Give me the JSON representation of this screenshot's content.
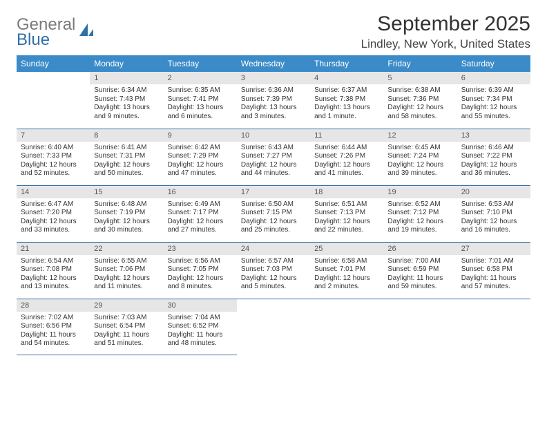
{
  "logo": {
    "word1": "General",
    "word2": "Blue"
  },
  "title": "September 2025",
  "location": "Lindley, New York, United States",
  "colors": {
    "header_bg": "#3b8bc9",
    "header_text": "#ffffff",
    "daynum_bg": "#e6e6e6",
    "cell_border": "#2f6fa8",
    "logo_gray": "#7a7a7a",
    "logo_blue": "#2f6fa8",
    "body_text": "#333333"
  },
  "typography": {
    "title_fontsize": 30,
    "location_fontsize": 17,
    "header_fontsize": 12,
    "daynum_fontsize": 11,
    "body_fontsize": 10
  },
  "weekdays": [
    "Sunday",
    "Monday",
    "Tuesday",
    "Wednesday",
    "Thursday",
    "Friday",
    "Saturday"
  ],
  "start_weekday": 1,
  "days": [
    {
      "n": 1,
      "sunrise": "6:34 AM",
      "sunset": "7:43 PM",
      "daylight": "13 hours and 9 minutes."
    },
    {
      "n": 2,
      "sunrise": "6:35 AM",
      "sunset": "7:41 PM",
      "daylight": "13 hours and 6 minutes."
    },
    {
      "n": 3,
      "sunrise": "6:36 AM",
      "sunset": "7:39 PM",
      "daylight": "13 hours and 3 minutes."
    },
    {
      "n": 4,
      "sunrise": "6:37 AM",
      "sunset": "7:38 PM",
      "daylight": "13 hours and 1 minute."
    },
    {
      "n": 5,
      "sunrise": "6:38 AM",
      "sunset": "7:36 PM",
      "daylight": "12 hours and 58 minutes."
    },
    {
      "n": 6,
      "sunrise": "6:39 AM",
      "sunset": "7:34 PM",
      "daylight": "12 hours and 55 minutes."
    },
    {
      "n": 7,
      "sunrise": "6:40 AM",
      "sunset": "7:33 PM",
      "daylight": "12 hours and 52 minutes."
    },
    {
      "n": 8,
      "sunrise": "6:41 AM",
      "sunset": "7:31 PM",
      "daylight": "12 hours and 50 minutes."
    },
    {
      "n": 9,
      "sunrise": "6:42 AM",
      "sunset": "7:29 PM",
      "daylight": "12 hours and 47 minutes."
    },
    {
      "n": 10,
      "sunrise": "6:43 AM",
      "sunset": "7:27 PM",
      "daylight": "12 hours and 44 minutes."
    },
    {
      "n": 11,
      "sunrise": "6:44 AM",
      "sunset": "7:26 PM",
      "daylight": "12 hours and 41 minutes."
    },
    {
      "n": 12,
      "sunrise": "6:45 AM",
      "sunset": "7:24 PM",
      "daylight": "12 hours and 39 minutes."
    },
    {
      "n": 13,
      "sunrise": "6:46 AM",
      "sunset": "7:22 PM",
      "daylight": "12 hours and 36 minutes."
    },
    {
      "n": 14,
      "sunrise": "6:47 AM",
      "sunset": "7:20 PM",
      "daylight": "12 hours and 33 minutes."
    },
    {
      "n": 15,
      "sunrise": "6:48 AM",
      "sunset": "7:19 PM",
      "daylight": "12 hours and 30 minutes."
    },
    {
      "n": 16,
      "sunrise": "6:49 AM",
      "sunset": "7:17 PM",
      "daylight": "12 hours and 27 minutes."
    },
    {
      "n": 17,
      "sunrise": "6:50 AM",
      "sunset": "7:15 PM",
      "daylight": "12 hours and 25 minutes."
    },
    {
      "n": 18,
      "sunrise": "6:51 AM",
      "sunset": "7:13 PM",
      "daylight": "12 hours and 22 minutes."
    },
    {
      "n": 19,
      "sunrise": "6:52 AM",
      "sunset": "7:12 PM",
      "daylight": "12 hours and 19 minutes."
    },
    {
      "n": 20,
      "sunrise": "6:53 AM",
      "sunset": "7:10 PM",
      "daylight": "12 hours and 16 minutes."
    },
    {
      "n": 21,
      "sunrise": "6:54 AM",
      "sunset": "7:08 PM",
      "daylight": "12 hours and 13 minutes."
    },
    {
      "n": 22,
      "sunrise": "6:55 AM",
      "sunset": "7:06 PM",
      "daylight": "12 hours and 11 minutes."
    },
    {
      "n": 23,
      "sunrise": "6:56 AM",
      "sunset": "7:05 PM",
      "daylight": "12 hours and 8 minutes."
    },
    {
      "n": 24,
      "sunrise": "6:57 AM",
      "sunset": "7:03 PM",
      "daylight": "12 hours and 5 minutes."
    },
    {
      "n": 25,
      "sunrise": "6:58 AM",
      "sunset": "7:01 PM",
      "daylight": "12 hours and 2 minutes."
    },
    {
      "n": 26,
      "sunrise": "7:00 AM",
      "sunset": "6:59 PM",
      "daylight": "11 hours and 59 minutes."
    },
    {
      "n": 27,
      "sunrise": "7:01 AM",
      "sunset": "6:58 PM",
      "daylight": "11 hours and 57 minutes."
    },
    {
      "n": 28,
      "sunrise": "7:02 AM",
      "sunset": "6:56 PM",
      "daylight": "11 hours and 54 minutes."
    },
    {
      "n": 29,
      "sunrise": "7:03 AM",
      "sunset": "6:54 PM",
      "daylight": "11 hours and 51 minutes."
    },
    {
      "n": 30,
      "sunrise": "7:04 AM",
      "sunset": "6:52 PM",
      "daylight": "11 hours and 48 minutes."
    }
  ],
  "labels": {
    "sunrise": "Sunrise:",
    "sunset": "Sunset:",
    "daylight": "Daylight:"
  }
}
